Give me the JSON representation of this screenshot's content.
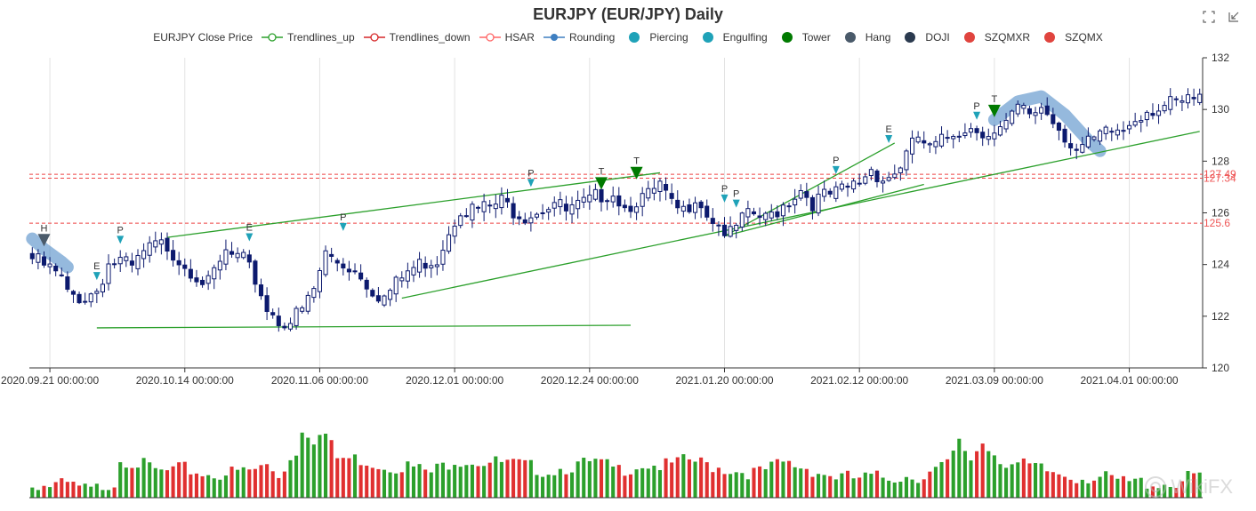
{
  "title": "EURJPY (EUR/JPY) Daily",
  "watermark": "WikiFX",
  "toolbox": [
    "zoom-icon",
    "restore-icon"
  ],
  "legend": [
    {
      "label": "EURJPY Close Price",
      "kind": "none",
      "color": "#333333"
    },
    {
      "label": "Trendlines_up",
      "kind": "line-circle",
      "color": "#2ca02c"
    },
    {
      "label": "Trendlines_down",
      "kind": "line-circle",
      "color": "#d62728"
    },
    {
      "label": "HSAR",
      "kind": "line-circle",
      "color": "#ff6666"
    },
    {
      "label": "Rounding",
      "kind": "line-dot",
      "color": "#3e7fc1"
    },
    {
      "label": "Piercing",
      "kind": "dot",
      "color": "#1fa2b8"
    },
    {
      "label": "Engulfing",
      "kind": "dot",
      "color": "#1fa2b8"
    },
    {
      "label": "Tower",
      "kind": "dot",
      "color": "#007a00"
    },
    {
      "label": "Hang",
      "kind": "dot",
      "color": "#4a5a6a"
    },
    {
      "label": "DOJI",
      "kind": "dot",
      "color": "#2b3a4f"
    },
    {
      "label": "SZQMXR",
      "kind": "dot",
      "color": "#e0443e"
    },
    {
      "label": "SZQMX",
      "kind": "dot",
      "color": "#e0443e"
    }
  ],
  "chart_data": {
    "type": "candlestick",
    "title": "EURJPY (EUR/JPY) Daily",
    "x_tick_labels": [
      "2020.09.21 00:00:00",
      "2020.10.14 00:00:00",
      "2020.11.06 00:00:00",
      "2020.12.01 00:00:00",
      "2020.12.24 00:00:00",
      "2021.01.20 00:00:00",
      "2021.02.12 00:00:00",
      "2021.03.09 00:00:00",
      "2021.04.01 00:00:00"
    ],
    "x_tick_index": [
      3,
      26,
      49,
      72,
      95,
      118,
      141,
      164,
      187
    ],
    "ylim": [
      120,
      132
    ],
    "y_ticks": [
      120,
      122,
      124,
      126,
      128,
      130,
      132
    ],
    "y_axis_position": "right",
    "grid": "vertical",
    "bar_count": 200,
    "close_anchors": [
      [
        0,
        124.4
      ],
      [
        3,
        124.0
      ],
      [
        5,
        123.6
      ],
      [
        6,
        123.0
      ],
      [
        9,
        122.9
      ],
      [
        11,
        123.2
      ],
      [
        13,
        124.2
      ],
      [
        15,
        124.3
      ],
      [
        17,
        124.0
      ],
      [
        19,
        124.6
      ],
      [
        21,
        124.9
      ],
      [
        23,
        124.9
      ],
      [
        25,
        124.4
      ],
      [
        28,
        123.8
      ],
      [
        30,
        123.4
      ],
      [
        33,
        124.6
      ],
      [
        36,
        124.3
      ],
      [
        38,
        123.6
      ],
      [
        40,
        122.5
      ],
      [
        42,
        122.0
      ],
      [
        44,
        122.0
      ],
      [
        46,
        122.4
      ],
      [
        48,
        123.2
      ],
      [
        50,
        124.6
      ],
      [
        52,
        124.3
      ],
      [
        54,
        124.1
      ],
      [
        56,
        123.8
      ],
      [
        58,
        123.2
      ],
      [
        60,
        122.9
      ],
      [
        62,
        123.4
      ],
      [
        64,
        123.9
      ],
      [
        67,
        124.3
      ],
      [
        69,
        124.4
      ],
      [
        71,
        125.5
      ],
      [
        73,
        126.4
      ],
      [
        75,
        126.3
      ],
      [
        78,
        126.4
      ],
      [
        80,
        126.6
      ],
      [
        82,
        126.3
      ],
      [
        84,
        126.1
      ],
      [
        87,
        126.4
      ],
      [
        89,
        126.6
      ],
      [
        91,
        126.2
      ],
      [
        93,
        126.4
      ],
      [
        95,
        126.6
      ],
      [
        97,
        126.9
      ],
      [
        99,
        127.0
      ],
      [
        101,
        126.4
      ],
      [
        103,
        126.7
      ],
      [
        105,
        126.8
      ],
      [
        107,
        127.2
      ],
      [
        109,
        126.4
      ],
      [
        111,
        126.2
      ],
      [
        113,
        126.9
      ],
      [
        115,
        126.2
      ],
      [
        117,
        125.7
      ],
      [
        119,
        125.3
      ],
      [
        121,
        125.9
      ],
      [
        123,
        126.1
      ],
      [
        125,
        125.9
      ],
      [
        127,
        126.3
      ],
      [
        129,
        126.7
      ],
      [
        131,
        127.1
      ],
      [
        133,
        126.6
      ],
      [
        135,
        126.8
      ],
      [
        137,
        126.9
      ],
      [
        139,
        127.1
      ],
      [
        141,
        127.4
      ],
      [
        143,
        127.9
      ],
      [
        145,
        127.5
      ],
      [
        147,
        127.7
      ],
      [
        149,
        128.4
      ],
      [
        151,
        129.1
      ],
      [
        153,
        128.6
      ],
      [
        155,
        128.9
      ],
      [
        157,
        129.3
      ],
      [
        159,
        129.5
      ],
      [
        162,
        129.4
      ],
      [
        164,
        129.2
      ],
      [
        166,
        129.5
      ],
      [
        168,
        130.2
      ],
      [
        170,
        130.0
      ],
      [
        172,
        130.3
      ],
      [
        174,
        129.8
      ],
      [
        176,
        129.2
      ],
      [
        178,
        128.6
      ],
      [
        180,
        128.8
      ],
      [
        182,
        129.1
      ],
      [
        184,
        129.3
      ],
      [
        186,
        129.4
      ],
      [
        188,
        129.9
      ],
      [
        190,
        130.2
      ],
      [
        193,
        130.3
      ],
      [
        196,
        130.4
      ],
      [
        199,
        130.6
      ]
    ],
    "volume_anchors": [
      [
        0,
        0.16
      ],
      [
        6,
        0.17
      ],
      [
        10,
        0.11
      ],
      [
        14,
        0.2
      ],
      [
        15,
        0.45
      ],
      [
        18,
        0.4
      ],
      [
        22,
        0.3
      ],
      [
        26,
        0.34
      ],
      [
        30,
        0.28
      ],
      [
        34,
        0.3
      ],
      [
        38,
        0.33
      ],
      [
        40,
        0.38
      ],
      [
        42,
        0.28
      ],
      [
        45,
        0.52
      ],
      [
        46,
        0.78
      ],
      [
        48,
        0.66
      ],
      [
        50,
        0.7
      ],
      [
        52,
        0.45
      ],
      [
        56,
        0.44
      ],
      [
        60,
        0.37
      ],
      [
        64,
        0.37
      ],
      [
        68,
        0.3
      ],
      [
        72,
        0.44
      ],
      [
        76,
        0.42
      ],
      [
        80,
        0.4
      ],
      [
        84,
        0.37
      ],
      [
        88,
        0.32
      ],
      [
        92,
        0.37
      ],
      [
        96,
        0.4
      ],
      [
        100,
        0.33
      ],
      [
        104,
        0.39
      ],
      [
        108,
        0.37
      ],
      [
        112,
        0.43
      ],
      [
        116,
        0.37
      ],
      [
        120,
        0.32
      ],
      [
        124,
        0.3
      ],
      [
        128,
        0.4
      ],
      [
        132,
        0.35
      ],
      [
        136,
        0.27
      ],
      [
        140,
        0.24
      ],
      [
        144,
        0.25
      ],
      [
        148,
        0.26
      ],
      [
        152,
        0.27
      ],
      [
        156,
        0.38
      ],
      [
        158,
        0.6
      ],
      [
        160,
        0.45
      ],
      [
        162,
        0.62
      ],
      [
        166,
        0.4
      ],
      [
        170,
        0.36
      ],
      [
        174,
        0.3
      ],
      [
        178,
        0.26
      ],
      [
        182,
        0.25
      ],
      [
        186,
        0.2
      ],
      [
        190,
        0.2
      ],
      [
        194,
        0.18
      ],
      [
        199,
        0.28
      ]
    ],
    "hsar_levels": [
      {
        "value": 127.49,
        "label": "127.49"
      },
      {
        "value": 127.34,
        "label": "127.34"
      },
      {
        "value": 125.6,
        "label": "125.6"
      }
    ],
    "trendlines": [
      {
        "from": [
          11,
          121.55
        ],
        "to": [
          102,
          121.65
        ],
        "name": "Trendlines_up"
      },
      {
        "from": [
          23,
          125.05
        ],
        "to": [
          107,
          127.55
        ],
        "name": "Trendlines_up"
      },
      {
        "from": [
          63,
          122.7
        ],
        "to": [
          199,
          129.15
        ],
        "name": "Trendlines_up"
      },
      {
        "from": [
          118,
          125.1
        ],
        "to": [
          152,
          127.1
        ],
        "name": "Trendlines_up"
      },
      {
        "from": [
          118,
          125.1
        ],
        "to": [
          147,
          128.7
        ],
        "name": "Trendlines_up"
      }
    ],
    "rounding": [
      {
        "points": [
          [
            0,
            125.0
          ],
          [
            2,
            124.6
          ],
          [
            5,
            124.1
          ],
          [
            6,
            123.9
          ]
        ]
      },
      {
        "points": [
          [
            164,
            129.6
          ],
          [
            168,
            130.3
          ],
          [
            172,
            130.5
          ],
          [
            176,
            129.8
          ],
          [
            180,
            128.8
          ],
          [
            182,
            128.4
          ]
        ]
      }
    ],
    "pattern_markers": [
      {
        "index": 2,
        "value": 124.7,
        "label": "H",
        "pattern": "Hang"
      },
      {
        "index": 11,
        "value": 123.4,
        "label": "E",
        "pattern": "Engulfing"
      },
      {
        "index": 15,
        "value": 124.8,
        "label": "P",
        "pattern": "Piercing"
      },
      {
        "index": 37,
        "value": 124.9,
        "label": "E",
        "pattern": "Engulfing"
      },
      {
        "index": 53,
        "value": 125.3,
        "label": "P",
        "pattern": "Piercing"
      },
      {
        "index": 85,
        "value": 127.0,
        "label": "P",
        "pattern": "Piercing"
      },
      {
        "index": 97,
        "value": 126.9,
        "label": "T",
        "pattern": "Tower"
      },
      {
        "index": 103,
        "value": 127.3,
        "label": "T",
        "pattern": "Tower"
      },
      {
        "index": 118,
        "value": 126.4,
        "label": "P",
        "pattern": "Piercing"
      },
      {
        "index": 120,
        "value": 126.2,
        "label": "P",
        "pattern": "Piercing"
      },
      {
        "index": 137,
        "value": 127.5,
        "label": "P",
        "pattern": "Piercing"
      },
      {
        "index": 146,
        "value": 128.7,
        "label": "E",
        "pattern": "Engulfing"
      },
      {
        "index": 161,
        "value": 129.6,
        "label": "P",
        "pattern": "Piercing"
      },
      {
        "index": 164,
        "value": 129.7,
        "label": "T",
        "pattern": "Tower"
      }
    ]
  }
}
